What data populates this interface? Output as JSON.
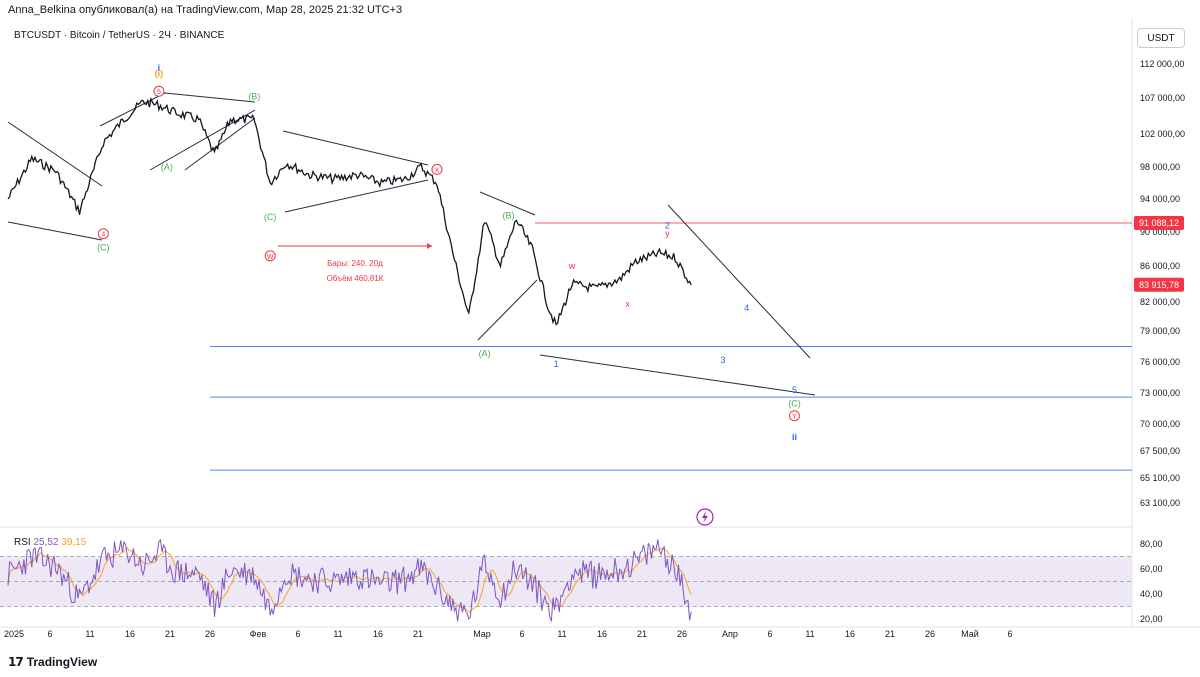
{
  "header": {
    "author": "Anna_Belkina",
    "published_text": "опубликовал(а) на TradingView.com, Мар 28, 2025 21:32 UTC+3"
  },
  "legend": {
    "symbol": "BTCUSDT · Bitcoin / TetherUS · 2Ч · BINANCE"
  },
  "currency_label": "USDT",
  "logo_text": "TradingView",
  "colors": {
    "candle": "#131722",
    "red_line": "#f23645",
    "blue_line": "#2962ff",
    "wave_green": "#4caf50",
    "wave_red": "#f23645",
    "wave_blue": "#2962ff",
    "wave_orange": "#f5a623",
    "rsi_line": "#7e57c2",
    "rsi_ma": "#f5a623",
    "rsi_band": "#ede7f6"
  },
  "chart_data": {
    "type": "line",
    "series": [
      {
        "x": [
          "2025-01-01",
          "2025-01-04",
          "2025-01-07",
          "2025-01-10",
          "2025-01-13",
          "2025-01-16",
          "2025-01-18",
          "2025-01-20",
          "2025-01-22",
          "2025-01-25",
          "2025-01-27",
          "2025-01-29",
          "2025-02-01",
          "2025-02-03",
          "2025-02-05",
          "2025-02-08",
          "2025-02-11",
          "2025-02-14",
          "2025-02-17",
          "2025-02-20",
          "2025-02-22",
          "2025-02-24",
          "2025-02-26",
          "2025-02-28",
          "2025-03-02",
          "2025-03-04",
          "2025-03-06",
          "2025-03-08",
          "2025-03-10",
          "2025-03-11",
          "2025-03-13",
          "2025-03-16",
          "2025-03-19",
          "2025-03-21",
          "2025-03-24",
          "2025-03-26",
          "2025-03-28"
        ],
        "values": [
          94000,
          99000,
          97500,
          92500,
          101000,
          104500,
          106500,
          106000,
          105000,
          104000,
          99500,
          104000,
          104000,
          96000,
          98500,
          97000,
          96500,
          97000,
          96000,
          96500,
          98000,
          96000,
          87500,
          80500,
          91500,
          86000,
          91500,
          88000,
          81500,
          79500,
          84000,
          83500,
          84500,
          86500,
          87500,
          87000,
          83900
        ]
      }
    ],
    "y_ticks": [
      "112 000,00",
      "107 000,00",
      "102 000,00",
      "98 000,00",
      "94 000,00",
      "90 000,00",
      "86 000,00",
      "82 000,00",
      "79 000,00",
      "76 000,00",
      "73 000,00",
      "70 000,00",
      "67 500,00",
      "65 100,00",
      "63 100,00"
    ],
    "price_labels": {
      "red_level": "91 088,12",
      "last_price": "83 915,78"
    },
    "x_ticks": [
      "2025",
      "6",
      "11",
      "16",
      "21",
      "26",
      "Фев",
      "6",
      "11",
      "16",
      "21",
      "Мар",
      "6",
      "11",
      "16",
      "21",
      "26",
      "Апр",
      "6",
      "11",
      "16",
      "21",
      "26",
      "Май",
      "6"
    ],
    "horizontal_levels": [
      {
        "name": "resistance",
        "value": 91088.12
      },
      {
        "name": "support-1",
        "value": 77500
      },
      {
        "name": "support-2",
        "value": 72600
      },
      {
        "name": "support-3",
        "value": 65800
      }
    ],
    "measure": {
      "bars_text": "Бары: 240, 20д",
      "volume_text": "Объём 460,81К"
    },
    "wave_labels": [
      {
        "text": "(i)",
        "date": "2025-01-20",
        "price": 113400,
        "color": "orange",
        "circled": false
      },
      {
        "text": "i",
        "date": "2025-01-20",
        "price": 111400,
        "color": "blue",
        "circled": false
      },
      {
        "text": "5",
        "date": "2025-01-20",
        "price": 108000,
        "color": "red",
        "circled": true
      },
      {
        "text": "(B)",
        "date": "2025-02-01",
        "price": 107200,
        "color": "green",
        "circled": false
      },
      {
        "text": "(A)",
        "date": "2025-01-21",
        "price": 98000,
        "color": "green",
        "circled": false
      },
      {
        "text": "4",
        "date": "2025-01-13",
        "price": 89800,
        "color": "red",
        "circled": true
      },
      {
        "text": "(C)",
        "date": "2025-01-13",
        "price": 88200,
        "color": "green",
        "circled": false
      },
      {
        "text": "(C)",
        "date": "2025-02-03",
        "price": 91800,
        "color": "green",
        "circled": false
      },
      {
        "text": "W",
        "date": "2025-02-03",
        "price": 87200,
        "color": "red",
        "circled": true
      },
      {
        "text": "X",
        "date": "2025-02-24",
        "price": 97700,
        "color": "red",
        "circled": true
      },
      {
        "text": "(B)",
        "date": "2025-03-05",
        "price": 92000,
        "color": "green",
        "circled": false
      },
      {
        "text": "(A)",
        "date": "2025-03-02",
        "price": 76800,
        "color": "green",
        "circled": false
      },
      {
        "text": "w",
        "date": "2025-03-13",
        "price": 86000,
        "color": "red",
        "circled": false
      },
      {
        "text": "x",
        "date": "2025-03-20",
        "price": 81800,
        "color": "red",
        "circled": false
      },
      {
        "text": "y",
        "date": "2025-03-25",
        "price": 89800,
        "color": "red",
        "circled": false
      },
      {
        "text": "2",
        "date": "2025-03-25",
        "price": 90800,
        "color": "blue",
        "circled": false
      },
      {
        "text": "1",
        "date": "2025-03-11",
        "price": 75800,
        "color": "blue",
        "circled": false
      },
      {
        "text": "3",
        "date": "2025-04-01",
        "price": 76200,
        "color": "blue",
        "circled": false
      },
      {
        "text": "4",
        "date": "2025-04-04",
        "price": 81400,
        "color": "blue",
        "circled": false
      },
      {
        "text": "5",
        "date": "2025-04-10",
        "price": 73300,
        "color": "blue",
        "circled": false
      },
      {
        "text": "(C)",
        "date": "2025-04-10",
        "price": 72000,
        "color": "green",
        "circled": false
      },
      {
        "text": "Y",
        "date": "2025-04-10",
        "price": 70800,
        "color": "red",
        "circled": true
      },
      {
        "text": "ii",
        "date": "2025-04-10",
        "price": 68800,
        "color": "blue",
        "circled": false
      }
    ],
    "rsi": {
      "name": "RSI",
      "value": "25,52",
      "ma_value": "39,15",
      "y_ticks": [
        "80,00",
        "60,00",
        "40,00",
        "20,00"
      ],
      "upper": 70,
      "middle": 50,
      "lower": 30,
      "x": [
        "2025-01-01",
        "2025-01-04",
        "2025-01-07",
        "2025-01-10",
        "2025-01-13",
        "2025-01-16",
        "2025-01-18",
        "2025-01-20",
        "2025-01-22",
        "2025-01-25",
        "2025-01-27",
        "2025-01-29",
        "2025-02-01",
        "2025-02-03",
        "2025-02-05",
        "2025-02-08",
        "2025-02-11",
        "2025-02-14",
        "2025-02-17",
        "2025-02-20",
        "2025-02-22",
        "2025-02-24",
        "2025-02-26",
        "2025-02-28",
        "2025-03-02",
        "2025-03-04",
        "2025-03-06",
        "2025-03-08",
        "2025-03-10",
        "2025-03-11",
        "2025-03-13",
        "2025-03-16",
        "2025-03-19",
        "2025-03-21",
        "2025-03-24",
        "2025-03-26",
        "2025-03-28"
      ],
      "values": [
        55,
        70,
        62,
        35,
        68,
        75,
        62,
        74,
        58,
        56,
        30,
        60,
        55,
        28,
        58,
        52,
        50,
        55,
        48,
        52,
        60,
        45,
        30,
        22,
        65,
        38,
        62,
        48,
        30,
        28,
        58,
        55,
        60,
        65,
        78,
        60,
        26
      ]
    }
  }
}
